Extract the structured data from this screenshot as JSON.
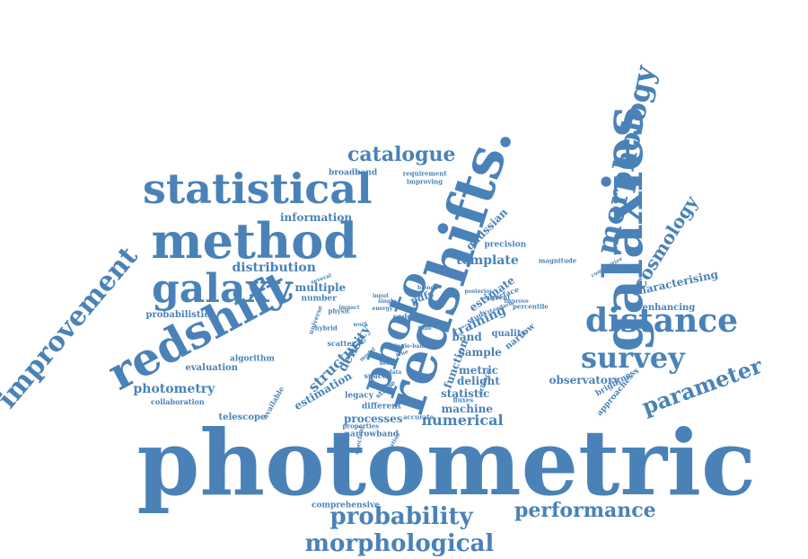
{
  "colors": {
    "word": "#4a82b8",
    "background": "#ffffff"
  },
  "words": [
    "photometric",
    "redshifts.",
    "galaxies",
    "redshift",
    "method",
    "statistical",
    "galaxy",
    "improvement",
    "morphology",
    "distance",
    "survey",
    "photo",
    "probability",
    "morphological",
    "performance",
    "parameter",
    "catalogue",
    "cosmology",
    "distribution",
    "photometry",
    "information",
    "multiple",
    "structure",
    "estimation",
    "density",
    "numerical",
    "machine",
    "processes",
    "statistic",
    "delight",
    "metric",
    "sample",
    "band",
    "training",
    "template",
    "estimate",
    "gaussian",
    "precision",
    "function",
    "narrow",
    "observatory",
    "characterising",
    "enhancing",
    "brightness",
    "approaches",
    "evaluation",
    "algorithm",
    "collaboration",
    "telescope",
    "narrowband",
    "different",
    "legacy",
    "space",
    "comprehensive",
    "probabilistic",
    "number",
    "broadband",
    "requirement",
    "improving",
    "quality",
    "result",
    "study",
    "code",
    "pdfs",
    "percentile",
    "surface",
    "magnitude",
    "competitive",
    "scatter",
    "available",
    "stripe",
    "fluxes",
    "science",
    "accurate",
    "spectral",
    "properties",
    "separation",
    "universe",
    "hybrid",
    "physic",
    "impact",
    "input",
    "single",
    "several",
    "energy",
    "time",
    "current",
    "posterior",
    "standard",
    "blends",
    "improve",
    "field",
    "true",
    "single-band",
    "model",
    "work",
    "data"
  ]
}
